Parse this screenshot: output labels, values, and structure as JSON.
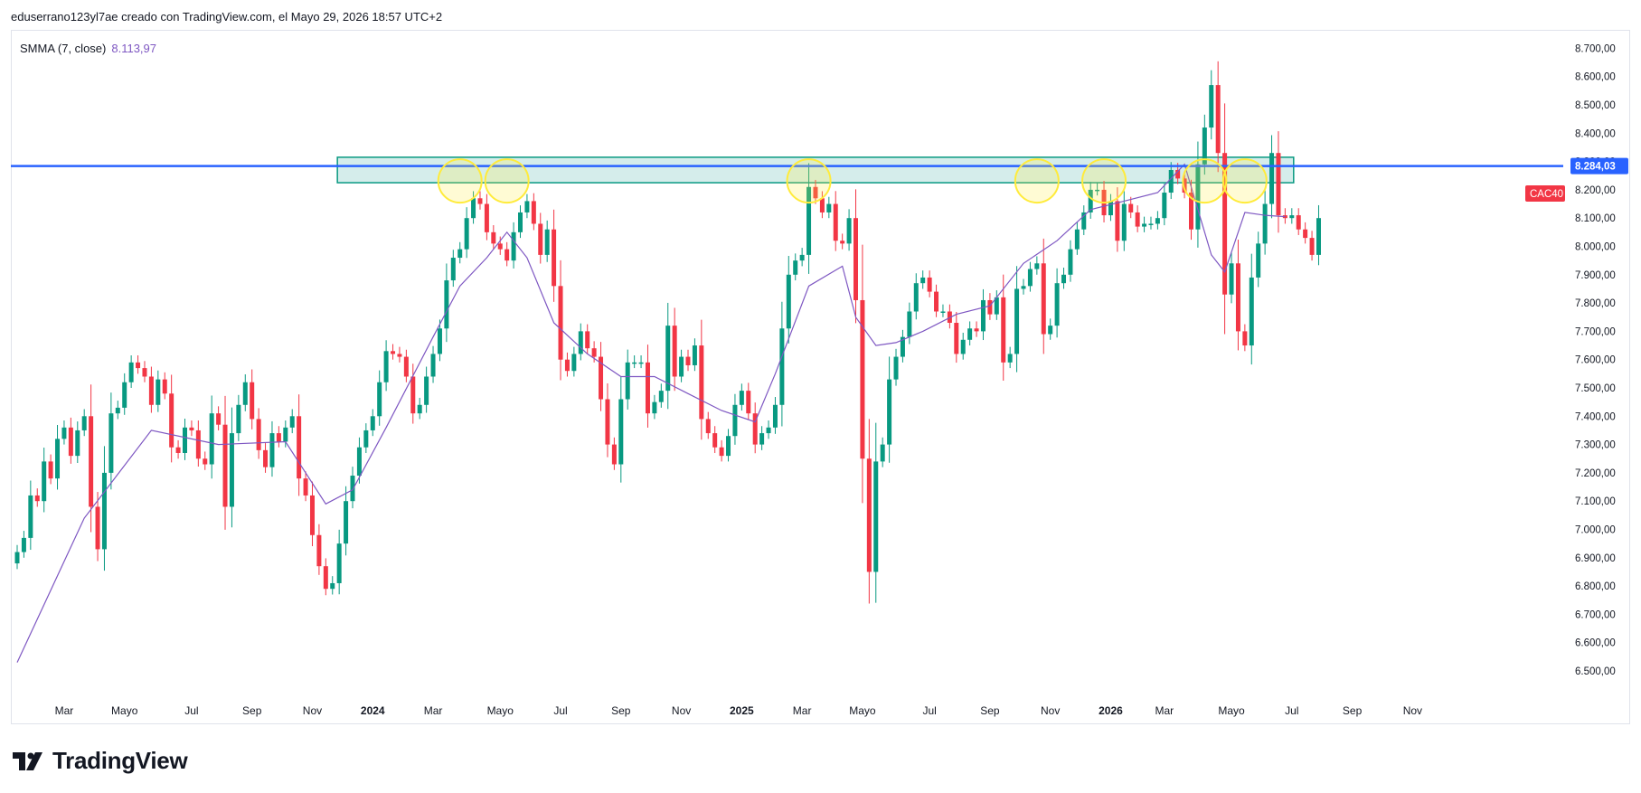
{
  "header": {
    "caption": "eduserrano123yl7ae creado con TradingView.com, el Mayo 29, 2026 18:57 UTC+2"
  },
  "indicator": {
    "name": "SMMA (7, close)",
    "value": "8.113,97",
    "color": "#7e57c2"
  },
  "branding": {
    "logo_text": "TradingView"
  },
  "chart_data": {
    "type": "candlestick",
    "timeframe": "weekly",
    "symbol_label": "CAC40",
    "price_label": "8.284,03",
    "colors": {
      "up": "#089981",
      "down": "#f23645",
      "smma": "#7e57c2",
      "level_line": "#2962ff",
      "zone_fill": "#b2dfdb",
      "zone_border": "#089981",
      "highlight": "#ffeb3b"
    },
    "y_axis": {
      "min": 6400,
      "max": 8700,
      "ticks": [
        "6.500,00",
        "6.600,00",
        "6.700,00",
        "6.800,00",
        "6.900,00",
        "7.000,00",
        "7.100,00",
        "7.200,00",
        "7.300,00",
        "7.400,00",
        "7.500,00",
        "7.600,00",
        "7.700,00",
        "7.800,00",
        "7.900,00",
        "8.000,00",
        "8.100,00",
        "8.200,00",
        "8.300,00",
        "8.400,00",
        "8.500,00",
        "8.600,00",
        "8.700,00"
      ],
      "tick_values": [
        6500,
        6600,
        6700,
        6800,
        6900,
        7000,
        7100,
        7200,
        7300,
        7400,
        7500,
        7600,
        7700,
        7800,
        7900,
        8000,
        8100,
        8200,
        8300,
        8400,
        8500,
        8600,
        8700
      ]
    },
    "x_axis": {
      "labels": [
        {
          "text": "Mar",
          "w": 7,
          "bold": false
        },
        {
          "text": "Mayo",
          "w": 16,
          "bold": false
        },
        {
          "text": "Jul",
          "w": 26,
          "bold": false
        },
        {
          "text": "Sep",
          "w": 35,
          "bold": false
        },
        {
          "text": "Nov",
          "w": 44,
          "bold": false
        },
        {
          "text": "2024",
          "w": 53,
          "bold": true
        },
        {
          "text": "Mar",
          "w": 62,
          "bold": false
        },
        {
          "text": "Mayo",
          "w": 72,
          "bold": false
        },
        {
          "text": "Jul",
          "w": 81,
          "bold": false
        },
        {
          "text": "Sep",
          "w": 90,
          "bold": false
        },
        {
          "text": "Nov",
          "w": 99,
          "bold": false
        },
        {
          "text": "2025",
          "w": 108,
          "bold": true
        },
        {
          "text": "Mar",
          "w": 117,
          "bold": false
        },
        {
          "text": "Mayo",
          "w": 126,
          "bold": false
        },
        {
          "text": "Jul",
          "w": 136,
          "bold": false
        },
        {
          "text": "Sep",
          "w": 145,
          "bold": false
        },
        {
          "text": "Nov",
          "w": 154,
          "bold": false
        },
        {
          "text": "2026",
          "w": 163,
          "bold": true
        },
        {
          "text": "Mar",
          "w": 171,
          "bold": false
        },
        {
          "text": "Mayo",
          "w": 181,
          "bold": false
        },
        {
          "text": "Jul",
          "w": 190,
          "bold": false
        },
        {
          "text": "Sep",
          "w": 199,
          "bold": false
        },
        {
          "text": "Nov",
          "w": 208,
          "bold": false
        }
      ]
    },
    "resistance_level": 8284.03,
    "resistance_zone": {
      "from_week": 48,
      "to_week": 190,
      "low": 8225,
      "high": 8315
    },
    "highlight_weeks": [
      66,
      73,
      118,
      152,
      162,
      177,
      183
    ],
    "highlight_price": 8225,
    "closes": [
      6920,
      6970,
      7120,
      7100,
      7240,
      7180,
      7320,
      7360,
      7260,
      7350,
      7400,
      7080,
      6930,
      7200,
      7410,
      7430,
      7520,
      7590,
      7570,
      7540,
      7440,
      7530,
      7480,
      7290,
      7270,
      7360,
      7350,
      7250,
      7230,
      7410,
      7370,
      7080,
      7340,
      7440,
      7520,
      7390,
      7280,
      7220,
      7340,
      7310,
      7360,
      7400,
      7180,
      7120,
      6980,
      6870,
      6790,
      6810,
      6950,
      7100,
      7190,
      7290,
      7350,
      7400,
      7520,
      7630,
      7620,
      7610,
      7540,
      7410,
      7440,
      7540,
      7620,
      7710,
      7880,
      7960,
      7990,
      8100,
      8170,
      8150,
      8050,
      8010,
      7990,
      7950,
      8050,
      8120,
      8160,
      8080,
      7970,
      8060,
      7860,
      7600,
      7560,
      7620,
      7700,
      7640,
      7610,
      7460,
      7300,
      7230,
      7460,
      7590,
      7590,
      7590,
      7410,
      7450,
      7490,
      7720,
      7540,
      7610,
      7580,
      7650,
      7390,
      7340,
      7290,
      7260,
      7330,
      7440,
      7490,
      7410,
      7300,
      7340,
      7360,
      7440,
      7710,
      7900,
      7950,
      7970,
      8210,
      8170,
      8120,
      8150,
      8020,
      8010,
      8100,
      7810,
      7250,
      6850,
      7240,
      7300,
      7530,
      7610,
      7680,
      7770,
      7870,
      7890,
      7840,
      7770,
      7770,
      7730,
      7620,
      7670,
      7710,
      7700,
      7810,
      7760,
      7820,
      7590,
      7620,
      7850,
      7860,
      7920,
      7940,
      7690,
      7720,
      7870,
      7900,
      7990,
      8060,
      8120,
      8200,
      8200,
      8110,
      8160,
      8020,
      8150,
      8120,
      8070,
      8080,
      8080,
      8100,
      8190,
      8270,
      8240,
      8190,
      8060,
      8290,
      8420,
      8570,
      8330,
      7830,
      7940,
      7700,
      7650,
      7890,
      8010,
      8150,
      8330,
      8110,
      8100,
      8110,
      8060,
      8030,
      7970,
      8100
    ],
    "smma_sample_weeks": [
      0,
      10,
      20,
      30,
      40,
      46,
      50,
      55,
      62,
      66,
      70,
      73,
      76,
      80,
      85,
      90,
      95,
      100,
      105,
      110,
      113,
      118,
      123,
      125,
      128,
      131,
      135,
      140,
      145,
      150,
      155,
      160,
      165,
      170,
      174,
      178,
      180,
      183,
      186,
      189
    ],
    "smma_sample_values": [
      6530,
      7040,
      7350,
      7300,
      7310,
      7090,
      7140,
      7360,
      7680,
      7860,
      7960,
      8050,
      7960,
      7730,
      7620,
      7540,
      7540,
      7480,
      7420,
      7380,
      7550,
      7860,
      7930,
      7750,
      7650,
      7660,
      7700,
      7760,
      7790,
      7940,
      8020,
      8130,
      8160,
      8190,
      8290,
      7970,
      7910,
      8120,
      8110,
      8105
    ]
  }
}
